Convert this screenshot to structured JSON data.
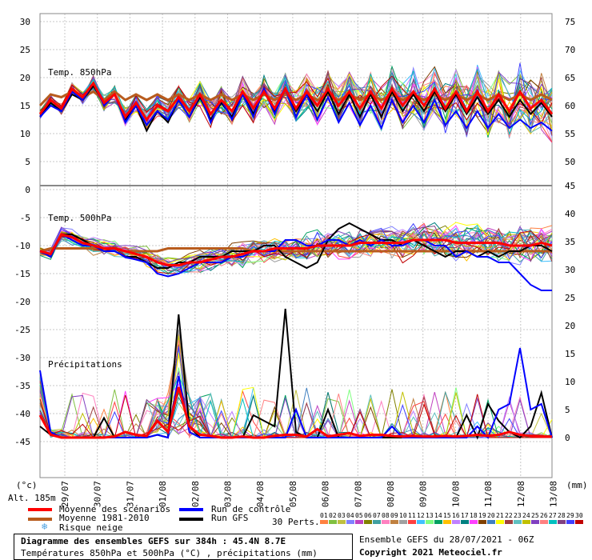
{
  "chart_data": {
    "type": "line",
    "dates": [
      "29/07",
      "30/07",
      "31/07",
      "01/08",
      "02/08",
      "03/08",
      "04/08",
      "05/08",
      "06/08",
      "07/08",
      "08/08",
      "09/08",
      "10/08",
      "11/08",
      "12/08",
      "13/08"
    ],
    "left_ticks": [
      "30",
      "25",
      "20",
      "15",
      "10",
      "5",
      "0",
      "-5",
      "-10",
      "-15",
      "-20",
      "-25",
      "-30",
      "-35",
      "-40",
      "-45"
    ],
    "right_ticks_top": [
      "75",
      "70",
      "65",
      "60",
      "55",
      "50"
    ],
    "right_ticks_bottom": [
      "45",
      "40",
      "35",
      "30",
      "25",
      "20",
      "15",
      "10",
      "5",
      "0"
    ],
    "left_unit": "(°c)",
    "right_unit": "(mm)",
    "altitude": "Alt. 185m",
    "panels": {
      "t850": {
        "label": "Temp. 850hPa",
        "ylim": [
          0,
          30
        ]
      },
      "t500": {
        "label": "Temp. 500hPa",
        "ylim": [
          -45,
          0
        ]
      },
      "precip": {
        "label": "Précipitations",
        "ylim": [
          0,
          25
        ]
      }
    },
    "series": [
      {
        "name": "Moyenne des scénarios",
        "color": "#ff0000",
        "t850": [
          13.5,
          16,
          14.5,
          18,
          16.5,
          19,
          15.5,
          17,
          13,
          15.5,
          12.5,
          15,
          14,
          16.5,
          14,
          17,
          13.5,
          16,
          14,
          17.5,
          14.5,
          17.5,
          14.5,
          18,
          14.5,
          17.5,
          15,
          18,
          15,
          17.5,
          14.5,
          17.5,
          14.5,
          18,
          15,
          17.5,
          15,
          18,
          14.5,
          17.5,
          14,
          17.5,
          14,
          17,
          14,
          17.5,
          14.5,
          16,
          13.5
        ],
        "t500": [
          -11,
          -11.5,
          -8,
          -8.5,
          -9.5,
          -10,
          -10.5,
          -10.5,
          -11,
          -11.5,
          -12,
          -13,
          -13.5,
          -13.5,
          -13,
          -13,
          -12.5,
          -12,
          -12,
          -11.5,
          -11,
          -11,
          -10.5,
          -10.5,
          -10.5,
          -10.5,
          -10,
          -10,
          -10,
          -10,
          -9.5,
          -9.5,
          -9.5,
          -9.5,
          -9.5,
          -9,
          -9,
          -9,
          -9,
          -9.5,
          -9.5,
          -9.5,
          -9.5,
          -9.5,
          -10,
          -10,
          -10,
          -9.5,
          -10
        ],
        "precip": [
          4,
          0.5,
          0,
          0,
          0,
          0,
          0,
          0.2,
          1,
          0.5,
          0.3,
          3,
          1,
          9,
          2,
          0.5,
          0.3,
          0,
          0,
          0.2,
          0,
          0,
          0.3,
          0.5,
          0.5,
          0.2,
          1.5,
          0.2,
          0.5,
          0.8,
          0.3,
          0.5,
          0.5,
          0.3,
          0.2,
          0.3,
          0.2,
          0.2,
          0.3,
          0.2,
          0.3,
          0.5,
          0.3,
          0.5,
          1,
          0.5,
          0.3,
          0.2,
          0.2
        ]
      },
      {
        "name": "Moyenne 1981-2010",
        "color": "#b85c1e",
        "t850": [
          15,
          17,
          16.5,
          17.5,
          16.5,
          17.5,
          16,
          17.5,
          16,
          17,
          16,
          17,
          16,
          17,
          16,
          17,
          16,
          17,
          16,
          17,
          16,
          17,
          16,
          17,
          16,
          17,
          16,
          17,
          16,
          17,
          16,
          17,
          16,
          17,
          16,
          17,
          16,
          17,
          16,
          17,
          16,
          17,
          16,
          17,
          16,
          17,
          16,
          17,
          16
        ],
        "t500": [
          -11,
          -10.5,
          -10.5,
          -10.5,
          -10.5,
          -10.5,
          -10.5,
          -10.5,
          -11,
          -11,
          -11,
          -11,
          -10.5,
          -10.5,
          -10.5,
          -10.5,
          -10.5,
          -10.5,
          -10.5,
          -10.5,
          -11,
          -11,
          -11,
          -11,
          -11,
          -11,
          -11,
          -11,
          -11,
          -11,
          -11,
          -11,
          -11,
          -11,
          -11,
          -11,
          -11,
          -11,
          -11,
          -11,
          -11,
          -11,
          -11,
          -11,
          -11,
          -11,
          -11,
          -11,
          -11
        ]
      },
      {
        "name": "Run de contrôle",
        "color": "#0000ff",
        "t850": [
          13,
          15,
          14,
          17.5,
          16,
          19,
          15,
          17,
          12,
          15,
          11.5,
          14,
          12.5,
          16,
          13,
          17,
          12,
          16,
          12.5,
          17,
          13,
          18,
          13.5,
          18,
          13,
          17,
          12.5,
          16.5,
          12,
          15.5,
          11.5,
          15,
          11,
          16,
          12,
          15,
          12,
          16,
          11.5,
          14,
          11,
          14,
          11,
          13.5,
          11,
          12.5,
          11,
          12,
          10.5
        ],
        "t500": [
          -11,
          -12,
          -8,
          -9,
          -10,
          -10,
          -11,
          -11,
          -12,
          -12.5,
          -13,
          -15,
          -15.5,
          -15,
          -14,
          -13,
          -13,
          -13,
          -12,
          -12,
          -11,
          -11,
          -11,
          -9,
          -9,
          -10,
          -10,
          -9,
          -9,
          -10,
          -9,
          -10,
          -9,
          -10,
          -10,
          -9,
          -9,
          -10,
          -10,
          -12,
          -11,
          -12,
          -12,
          -13,
          -13,
          -15,
          -17,
          -18,
          -18
        ],
        "precip": [
          12,
          1,
          0,
          0,
          0,
          0,
          0,
          0,
          0,
          0,
          0,
          0.5,
          0,
          11,
          1,
          0,
          0,
          0,
          0,
          0,
          0,
          0,
          0,
          0,
          5,
          0,
          0,
          0,
          0,
          0,
          0,
          0,
          0,
          2,
          0,
          0,
          0,
          0,
          0,
          0,
          0,
          2,
          0,
          5,
          6,
          16,
          5,
          6,
          0
        ]
      },
      {
        "name": "Run GFS",
        "color": "#000000",
        "t850": [
          13,
          15.5,
          14,
          17,
          16,
          18.5,
          15.5,
          17,
          12.5,
          15,
          10.5,
          14,
          12,
          16,
          13,
          16.5,
          12.5,
          15.5,
          13,
          17,
          13.5,
          17.5,
          14,
          18,
          14,
          17,
          14,
          17.5,
          13.5,
          17,
          13,
          17,
          13,
          17.5,
          14,
          17,
          14,
          17.5,
          14,
          17,
          13.5,
          16.5,
          13.5,
          16,
          13,
          16,
          13.5,
          15.5,
          13
        ],
        "t500": [
          -11,
          -12,
          -8,
          -8,
          -9,
          -10,
          -11,
          -11,
          -12,
          -12,
          -13,
          -14,
          -14,
          -13,
          -13,
          -12,
          -12,
          -12,
          -11,
          -11,
          -11,
          -10,
          -10,
          -12,
          -13,
          -14,
          -13,
          -9,
          -7,
          -6,
          -7,
          -8,
          -9,
          -9,
          -10,
          -9,
          -10,
          -11,
          -12,
          -11,
          -11,
          -12,
          -11,
          -12,
          -11,
          -11,
          -10,
          -10,
          -11
        ],
        "precip": [
          2,
          0.5,
          0,
          0,
          0,
          0,
          3.5,
          0,
          0,
          0,
          0,
          0.5,
          0,
          22,
          2,
          0,
          0,
          0,
          0,
          0,
          4,
          3,
          2,
          23,
          1,
          0,
          0,
          5,
          0,
          0,
          0,
          0,
          0,
          0,
          0,
          0,
          0,
          0,
          0,
          0,
          4,
          0,
          6,
          3,
          1,
          0,
          2,
          8,
          0
        ]
      }
    ],
    "perturbations": {
      "label": "30 Perts.",
      "numbers": [
        "01",
        "02",
        "03",
        "04",
        "05",
        "06",
        "07",
        "08",
        "09",
        "10",
        "11",
        "12",
        "13",
        "14",
        "15",
        "16",
        "17",
        "18",
        "19",
        "20",
        "21",
        "22",
        "23",
        "24",
        "25",
        "26",
        "27",
        "28",
        "29",
        "30"
      ],
      "colors": [
        "#ff8040",
        "#80c040",
        "#c0c040",
        "#8080ff",
        "#c040c0",
        "#808000",
        "#40a0a0",
        "#ff80c0",
        "#c08040",
        "#a0a0a0",
        "#ff4040",
        "#40c0ff",
        "#80ff80",
        "#00a060",
        "#ffc000",
        "#c080ff",
        "#008080",
        "#ff40ff",
        "#804000",
        "#4080c0",
        "#ffff00",
        "#a04040",
        "#60c0c0",
        "#c0c000",
        "#8040c0",
        "#ff8080",
        "#00c0c0",
        "#804080",
        "#4040ff",
        "#c00000"
      ]
    }
  },
  "legend": {
    "items": [
      {
        "label": "Moyenne des scénarios",
        "color": "#ff0000"
      },
      {
        "label": "Moyenne 1981-2010",
        "color": "#b85c1e"
      },
      {
        "label": "Run de contrôle",
        "color": "#0000ff"
      },
      {
        "label": "Run GFS",
        "color": "#000000"
      }
    ],
    "snow_label": "Risque neige",
    "snow_icon": "snowflake-icon",
    "perts_label": "30 Perts."
  },
  "footer": {
    "title": "Diagramme des ensembles GEFS sur 384h : 45.4N 8.7E",
    "subtitle": "Températures 850hPa et 500hPa (°C) , précipitations (mm)",
    "run": "Ensemble GEFS du 28/07/2021 - 06Z",
    "copyright": "Copyright 2021 Meteociel.fr"
  }
}
